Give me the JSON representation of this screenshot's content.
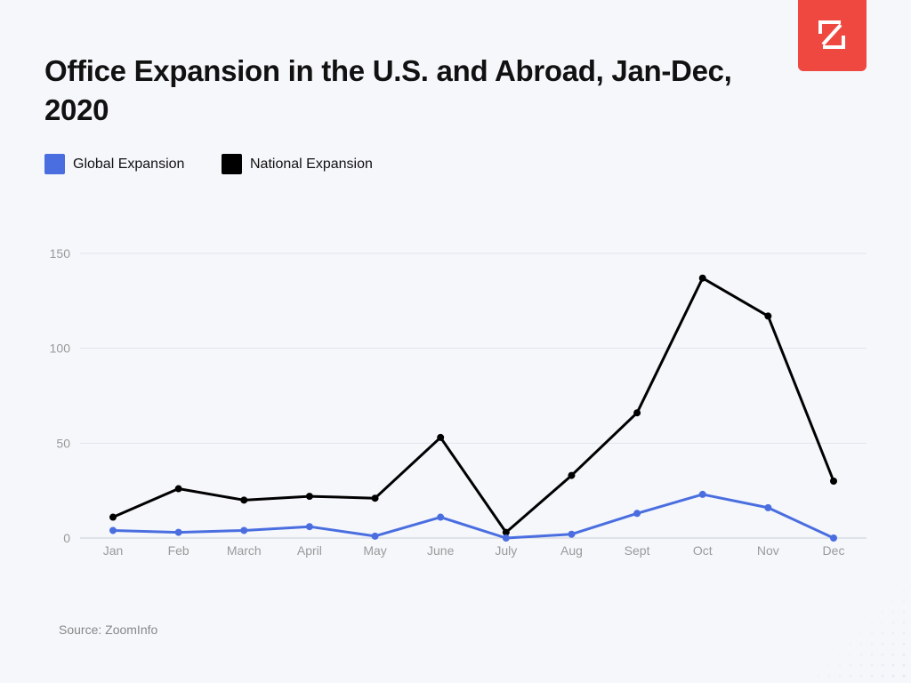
{
  "title": "Office Expansion in the U.S. and Abroad, Jan-Dec, 2020",
  "source": "Source: ZoomInfo",
  "logo": {
    "icon": "zoominfo-logo-icon",
    "color": "#ef4840"
  },
  "legend": [
    {
      "label": "Global Expansion",
      "color": "#4a6ee0"
    },
    {
      "label": "National Expansion",
      "color": "#000000"
    }
  ],
  "chart_data": {
    "type": "line",
    "title": "Office Expansion in the U.S. and Abroad, Jan-Dec, 2020",
    "xlabel": "",
    "ylabel": "",
    "categories": [
      "Jan",
      "Feb",
      "March",
      "April",
      "May",
      "June",
      "July",
      "Aug",
      "Sept",
      "Oct",
      "Nov",
      "Dec"
    ],
    "series": [
      {
        "name": "Global Expansion",
        "color": "#4a6ee0",
        "values": [
          4,
          3,
          4,
          6,
          1,
          11,
          0,
          2,
          13,
          23,
          16,
          0
        ]
      },
      {
        "name": "National Expansion",
        "color": "#000000",
        "values": [
          11,
          26,
          20,
          22,
          21,
          53,
          3,
          33,
          66,
          137,
          117,
          30
        ]
      }
    ],
    "ylim": [
      0,
      150
    ],
    "yticks": [
      0,
      50,
      100,
      150
    ],
    "grid": true,
    "legend_position": "top-left"
  }
}
